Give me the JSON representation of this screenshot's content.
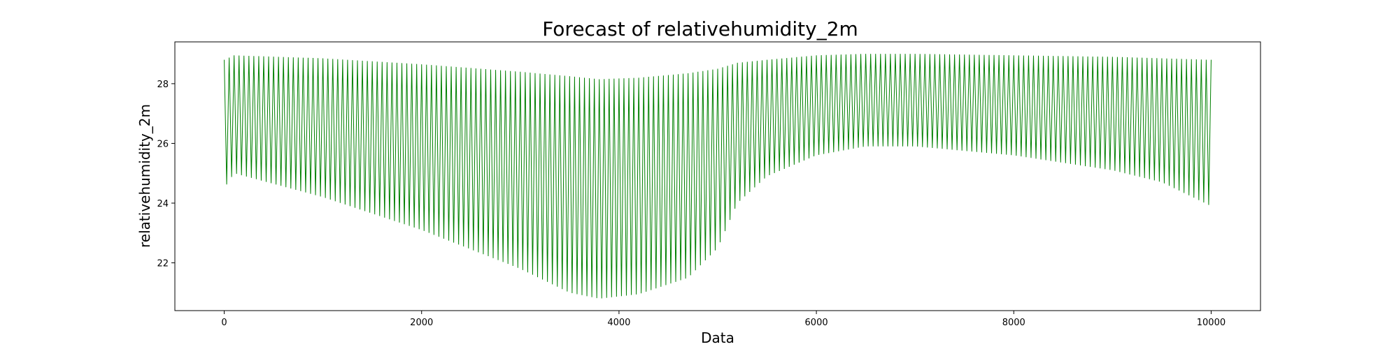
{
  "chart_data": {
    "type": "line",
    "title": "Forecast of relativehumidity_2m",
    "xlabel": "Data",
    "ylabel": "relativehumidity_2m",
    "xlim": [
      -500,
      10500
    ],
    "ylim": [
      20.4,
      29.4
    ],
    "xticks": [
      0,
      2000,
      4000,
      6000,
      8000,
      10000
    ],
    "yticks": [
      22,
      24,
      26,
      28
    ],
    "grid": false,
    "legend": "none",
    "line_color": "#008000",
    "series": [
      {
        "period": 50,
        "x": [
          0,
          100,
          1000,
          2000,
          3000,
          3500,
          3800,
          4200,
          4700,
          5000,
          5200,
          5500,
          6000,
          6500,
          7000,
          8000,
          9000,
          9500,
          10000
        ],
        "upper": [
          28.8,
          28.95,
          28.85,
          28.65,
          28.4,
          28.25,
          28.15,
          28.2,
          28.35,
          28.5,
          28.7,
          28.8,
          28.95,
          29.0,
          29.0,
          28.95,
          28.9,
          28.85,
          28.8
        ],
        "lower": [
          24.5,
          25.0,
          24.2,
          23.1,
          21.8,
          21.0,
          20.8,
          20.95,
          21.5,
          22.5,
          24.0,
          24.9,
          25.6,
          25.9,
          25.9,
          25.6,
          25.1,
          24.7,
          23.9
        ]
      }
    ]
  }
}
